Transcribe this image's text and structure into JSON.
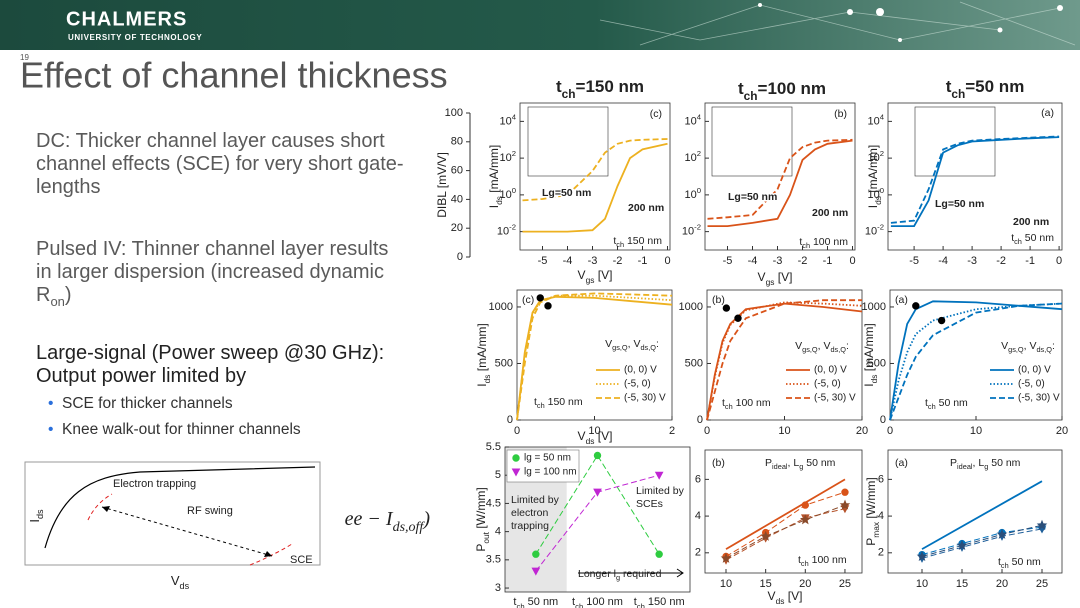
{
  "slide": {
    "header": {
      "brand": "CHALMERS",
      "sub": "UNIVERSITY OF TECHNOLOGY",
      "page": "19"
    },
    "title": "Effect of channel thickness",
    "paragraphs": [
      [
        "DC: Thicker channel layer causes short channel effects (SCE) for very short gate-lengths"
      ],
      [
        "Pulsed IV: Thinner channel layer results in larger dispersion (increased dynamic R",
        {
          "sub": "on"
        },
        ")"
      ],
      [
        "Large-signal (Power sweep @30 GHz): Output power limited by"
      ]
    ],
    "bullets": [
      "SCE for thicker channels",
      "Knee walk-out for thinner channels"
    ],
    "column_heads": [
      [
        "t",
        {
          "sub": "ch"
        },
        "=150 nm"
      ],
      [
        "t",
        {
          "sub": "ch"
        },
        "=100 nm"
      ],
      [
        "t",
        {
          "sub": "ch"
        },
        "=50 nm"
      ]
    ],
    "sketch": {
      "labels": [
        "Electron trapping",
        "RF swing",
        "SCE"
      ],
      "y_label": [
        "I",
        {
          "sub": "ds"
        }
      ],
      "x_label": [
        "V",
        {
          "sub": "ds"
        }
      ],
      "formula": [
        "ee − I",
        {
          "sub": "ds,off"
        },
        ")"
      ]
    }
  },
  "chart_data": [
    {
      "type": "axis",
      "ylim": [
        0,
        100
      ],
      "yticks": [
        0,
        20,
        40,
        60,
        80,
        100
      ],
      "y_label": [
        "DIBL [mV/V]"
      ]
    },
    {
      "type": "line",
      "yscale": "log",
      "xlim": [
        -5.9,
        0.1
      ],
      "ylim": [
        0.001,
        100000
      ],
      "xticks": [
        -5,
        -4,
        -3,
        -2,
        -1,
        0
      ],
      "yticks": [
        {
          "value": 0.01,
          "label": "10",
          "exp": "-2"
        },
        {
          "value": 1,
          "label": "10",
          "exp": "0"
        },
        {
          "value": 100,
          "label": "10",
          "exp": "2"
        },
        {
          "value": 10000,
          "label": "10",
          "exp": "4"
        }
      ],
      "y_label": [
        "I",
        {
          "sub": "ds"
        },
        " [mA/mm]"
      ],
      "x_label": [
        "V",
        {
          "sub": "gs"
        },
        " [V]"
      ],
      "annotations": [
        [
          "(c)"
        ],
        [
          "t",
          {
            "sub": "ch"
          },
          " 150 nm"
        ]
      ],
      "series": [
        {
          "name": "Lg=50 nm",
          "color": "#EDB120",
          "dash": "dash",
          "x": [
            -5.8,
            -5,
            -4,
            -3,
            -2.5,
            -2,
            -1.5,
            -1,
            0
          ],
          "values": [
            0.5,
            0.6,
            1,
            20,
            200,
            600,
            900,
            1000,
            1100
          ]
        },
        {
          "name": "200 nm",
          "color": "#EDB120",
          "dash": "solid",
          "x": [
            -5.8,
            -5,
            -4,
            -3,
            -2.5,
            -2,
            -1.5,
            -1,
            0
          ],
          "values": [
            0.01,
            0.01,
            0.01,
            0.012,
            0.05,
            3,
            100,
            300,
            600
          ]
        }
      ]
    },
    {
      "type": "line",
      "yscale": "log",
      "xlim": [
        -5.9,
        0.1
      ],
      "ylim": [
        0.001,
        100000
      ],
      "xticks": [
        -5,
        -4,
        -3,
        -2,
        -1,
        0
      ],
      "yticks": [
        {
          "value": 0.01,
          "label": "10",
          "exp": "-2"
        },
        {
          "value": 1,
          "label": "10",
          "exp": "0"
        },
        {
          "value": 100,
          "label": "10",
          "exp": "2"
        },
        {
          "value": 10000,
          "label": "10",
          "exp": "4"
        }
      ],
      "x_label": [
        "V",
        {
          "sub": "gs"
        },
        " [V]"
      ],
      "annotations": [
        [
          "(b)"
        ],
        [
          "t",
          {
            "sub": "ch"
          },
          " 100 nm"
        ]
      ],
      "series": [
        {
          "name": "Lg=50 nm",
          "color": "#D95319",
          "dash": "dash",
          "x": [
            -5.8,
            -5,
            -4,
            -3,
            -2.5,
            -2,
            -1.5,
            -1,
            0
          ],
          "values": [
            0.05,
            0.06,
            0.08,
            2,
            100,
            400,
            700,
            900,
            1000
          ]
        },
        {
          "name": "200 nm",
          "color": "#D95319",
          "dash": "solid",
          "x": [
            -5.8,
            -5,
            -4,
            -3,
            -2.5,
            -2,
            -1.5,
            -1,
            0
          ],
          "values": [
            0.02,
            0.02,
            0.03,
            0.05,
            1,
            80,
            300,
            600,
            900
          ]
        }
      ]
    },
    {
      "type": "line",
      "yscale": "log",
      "xlim": [
        -5.9,
        0.1
      ],
      "ylim": [
        0.001,
        100000
      ],
      "xticks": [
        -5,
        -4,
        -3,
        -2,
        -1,
        0
      ],
      "yticks": [
        {
          "value": 0.01,
          "label": "10",
          "exp": "-2"
        },
        {
          "value": 1,
          "label": "10",
          "exp": "0"
        },
        {
          "value": 100,
          "label": "10",
          "exp": "2"
        },
        {
          "value": 10000,
          "label": "10",
          "exp": "4"
        }
      ],
      "y_label": [
        "I",
        {
          "sub": "ds"
        },
        " [mA/mm]"
      ],
      "annotations": [
        [
          "(a)"
        ],
        [
          "t",
          {
            "sub": "ch"
          },
          " 50 nm"
        ]
      ],
      "series": [
        {
          "name": "Lg=50 nm",
          "color": "#0072BD",
          "dash": "dash",
          "x": [
            -5.8,
            -5,
            -4.5,
            -4,
            -3.5,
            -3,
            -2,
            -1,
            0
          ],
          "values": [
            0.03,
            0.04,
            2,
            300,
            600,
            900,
            1100,
            1300,
            1500
          ]
        },
        {
          "name": "200 nm",
          "color": "#0072BD",
          "dash": "solid",
          "x": [
            -5.8,
            -5,
            -4.5,
            -4,
            -3.5,
            -3,
            -2,
            -1,
            0
          ],
          "values": [
            0.02,
            0.02,
            0.5,
            200,
            500,
            800,
            1000,
            1200,
            1400
          ]
        }
      ]
    },
    {
      "type": "line",
      "xlim": [
        0,
        20
      ],
      "ylim": [
        0,
        1150
      ],
      "xticks": [
        0,
        10,
        {
          "value": 20,
          "label": "2"
        }
      ],
      "yticks": [
        0,
        500,
        1000
      ],
      "y_label": [
        "I",
        {
          "sub": "ds"
        },
        " [mA/mm]"
      ],
      "x_label": [
        "V",
        {
          "sub": "ds"
        },
        " [V]"
      ],
      "annotations": [
        [
          "(c)"
        ],
        [
          "V",
          {
            "sub": "gs,Q"
          },
          ", V",
          {
            "sub": "ds,Q"
          },
          ":"
        ],
        [
          "t",
          {
            "sub": "ch"
          },
          " 150 nm"
        ]
      ],
      "series": [
        {
          "name": "(0, 0) V",
          "color": "#EDB120",
          "dash": "solid",
          "x": [
            0,
            1,
            2,
            3,
            5,
            10,
            15,
            20
          ],
          "values": [
            0,
            600,
            950,
            1060,
            1090,
            1080,
            1050,
            1020
          ]
        },
        {
          "name": "(-5, 0)",
          "color": "#EDB120",
          "dash": "dot",
          "x": [
            0,
            1,
            2,
            3,
            5,
            10,
            15,
            20
          ],
          "values": [
            0,
            580,
            940,
            1050,
            1100,
            1100,
            1080,
            1060
          ]
        },
        {
          "name": "(-5, 30) V",
          "color": "#EDB120",
          "dash": "dash",
          "x": [
            0,
            1,
            2,
            3,
            5,
            10,
            15,
            20
          ],
          "values": [
            0,
            500,
            900,
            1040,
            1100,
            1120,
            1110,
            1100
          ]
        },
        {
          "color": "#000000",
          "dash": "none",
          "marker": "circle",
          "x": [
            3,
            4
          ],
          "values": [
            1080,
            1010
          ]
        }
      ]
    },
    {
      "type": "line",
      "xlim": [
        0,
        20
      ],
      "ylim": [
        0,
        1150
      ],
      "xticks": [
        0,
        10,
        20
      ],
      "yticks": [
        0,
        500,
        1000
      ],
      "annotations": [
        [
          "(b)"
        ],
        [
          "V",
          {
            "sub": "gs,Q"
          },
          ", V",
          {
            "sub": "ds,Q"
          },
          ":"
        ],
        [
          "t",
          {
            "sub": "ch"
          },
          " 100 nm"
        ]
      ],
      "series": [
        {
          "name": "(0, 0) V",
          "color": "#D95319",
          "dash": "solid",
          "x": [
            0,
            1,
            2,
            3,
            5,
            10,
            15,
            20
          ],
          "values": [
            0,
            400,
            700,
            850,
            980,
            1030,
            1000,
            960
          ]
        },
        {
          "name": "(-5, 0)",
          "color": "#D95319",
          "dash": "dot",
          "x": [
            0,
            1,
            2,
            3,
            5,
            10,
            15,
            20
          ],
          "values": [
            0,
            380,
            680,
            840,
            970,
            1040,
            1030,
            1010
          ]
        },
        {
          "name": "(-5, 30) V",
          "color": "#D95319",
          "dash": "dash",
          "x": [
            0,
            1,
            2,
            3,
            5,
            10,
            15,
            20
          ],
          "values": [
            0,
            250,
            500,
            700,
            900,
            1030,
            1060,
            1060
          ]
        },
        {
          "color": "#000000",
          "dash": "none",
          "marker": "circle",
          "x": [
            2.5,
            4
          ],
          "values": [
            990,
            900
          ]
        }
      ]
    },
    {
      "type": "line",
      "xlim": [
        0,
        20
      ],
      "ylim": [
        0,
        1150
      ],
      "xticks": [
        0,
        10,
        20
      ],
      "yticks": [
        0,
        500,
        1000
      ],
      "y_label": [
        "I",
        {
          "sub": "ds"
        },
        " [mA/mm]"
      ],
      "annotations": [
        [
          "(a)"
        ],
        [
          "V",
          {
            "sub": "gs,Q"
          },
          ", V",
          {
            "sub": "ds,Q"
          },
          ":"
        ],
        [
          "t",
          {
            "sub": "ch"
          },
          " 50 nm"
        ]
      ],
      "series": [
        {
          "name": "(0, 0) V",
          "color": "#0072BD",
          "dash": "solid",
          "x": [
            0,
            1,
            2,
            3,
            5,
            10,
            15,
            20
          ],
          "values": [
            0,
            500,
            850,
            980,
            1050,
            1040,
            1010,
            980
          ]
        },
        {
          "name": "(-5, 0)",
          "color": "#0072BD",
          "dash": "dot",
          "x": [
            0,
            1,
            2,
            3,
            5,
            10,
            15,
            20
          ],
          "values": [
            0,
            350,
            600,
            760,
            880,
            980,
            1010,
            1030
          ]
        },
        {
          "name": "(-5, 30) V",
          "color": "#0072BD",
          "dash": "dash",
          "x": [
            0,
            1,
            2,
            3,
            5,
            10,
            15,
            20
          ],
          "values": [
            0,
            200,
            400,
            560,
            750,
            950,
            1010,
            1030
          ]
        },
        {
          "color": "#000000",
          "dash": "none",
          "marker": "circle",
          "x": [
            3,
            6
          ],
          "values": [
            1010,
            880
          ]
        }
      ]
    },
    {
      "type": "scatter",
      "categories": [
        [
          "t",
          {
            "sub": "ch"
          },
          " 50 nm"
        ],
        [
          "t",
          {
            "sub": "ch"
          },
          " 100 nm"
        ],
        [
          "t",
          {
            "sub": "ch"
          },
          " 150 nm"
        ]
      ],
      "ylim": [
        2.93,
        5.5
      ],
      "yticks": [
        3,
        3.5,
        4,
        4.5,
        5,
        5.5
      ],
      "y_label": [
        "P",
        {
          "sub": "out"
        },
        " [W/mm]"
      ],
      "annotations": [
        [
          "Limited by"
        ],
        [
          "electron"
        ],
        [
          "trapping"
        ],
        [
          "Limited by"
        ],
        [
          "SCEs"
        ],
        [
          "Longer l",
          {
            "sub": "g"
          },
          " required"
        ]
      ],
      "series": [
        {
          "name": "lg = 50 nm",
          "color": "#2ecc40",
          "dash": "dash",
          "marker": "circle",
          "values": [
            3.6,
            5.35,
            3.6
          ]
        },
        {
          "name": "lg = 100 nm",
          "color": "#c026d3",
          "dash": "dash",
          "marker": "triangle",
          "values": [
            3.3,
            4.7,
            5.0
          ]
        }
      ]
    },
    {
      "type": "line",
      "xlim": [
        7.35,
        27.15
      ],
      "ylim": [
        0.9,
        7.6
      ],
      "xticks": [
        10,
        15,
        20,
        25
      ],
      "yticks": [
        2,
        4,
        6
      ],
      "x_label": [
        "V",
        {
          "sub": "ds"
        },
        " [V]"
      ],
      "annotations": [
        [
          "(b)"
        ],
        [
          "P",
          {
            "sub": "ideal"
          },
          ", L",
          {
            "sub": "g"
          },
          " 50 nm"
        ],
        [
          "t",
          {
            "sub": "ch"
          },
          " 100 nm"
        ]
      ],
      "series": [
        {
          "color": "#D95319",
          "dash": "solid",
          "x": [
            10,
            25
          ],
          "values": [
            2.2,
            6.0
          ]
        },
        {
          "color": "#D95319",
          "dash": "dash",
          "marker": "circle",
          "x": [
            10,
            15,
            20,
            25
          ],
          "values": [
            1.8,
            3.1,
            4.6,
            5.3
          ]
        },
        {
          "color": "#B5522A",
          "dash": "dash",
          "marker": "triangle",
          "x": [
            10,
            15,
            20,
            25
          ],
          "values": [
            1.6,
            2.8,
            3.9,
            4.4
          ]
        },
        {
          "color": "#8A4A2A",
          "dash": "dash",
          "marker": "star",
          "x": [
            10,
            15,
            20,
            25
          ],
          "values": [
            1.7,
            2.9,
            3.8,
            4.6
          ]
        }
      ]
    },
    {
      "type": "line",
      "xlim": [
        5.75,
        27.5
      ],
      "ylim": [
        0.9,
        7.6
      ],
      "xticks": [
        10,
        15,
        20,
        25
      ],
      "yticks": [
        2,
        4,
        6
      ],
      "y_label": [
        "P",
        {
          "sub": "max"
        },
        " [W/mm]"
      ],
      "annotations": [
        [
          "(a)"
        ],
        [
          "P",
          {
            "sub": "ideal"
          },
          ", L",
          {
            "sub": "g"
          },
          " 50 nm"
        ],
        [
          "t",
          {
            "sub": "ch"
          },
          " 50 nm"
        ]
      ],
      "series": [
        {
          "color": "#0072BD",
          "dash": "solid",
          "x": [
            10,
            25
          ],
          "values": [
            2.2,
            5.9
          ]
        },
        {
          "color": "#0072BD",
          "dash": "dash",
          "marker": "circle",
          "x": [
            10,
            15,
            20,
            25
          ],
          "values": [
            1.9,
            2.5,
            3.1,
            3.4
          ]
        },
        {
          "color": "#1F5F9A",
          "dash": "dash",
          "marker": "triangle",
          "x": [
            10,
            15,
            20,
            25
          ],
          "values": [
            1.7,
            2.3,
            2.9,
            3.3
          ]
        },
        {
          "color": "#2B4F7A",
          "dash": "dash",
          "marker": "star",
          "x": [
            10,
            15,
            20,
            25
          ],
          "values": [
            1.8,
            2.4,
            3.0,
            3.5
          ]
        }
      ]
    }
  ]
}
